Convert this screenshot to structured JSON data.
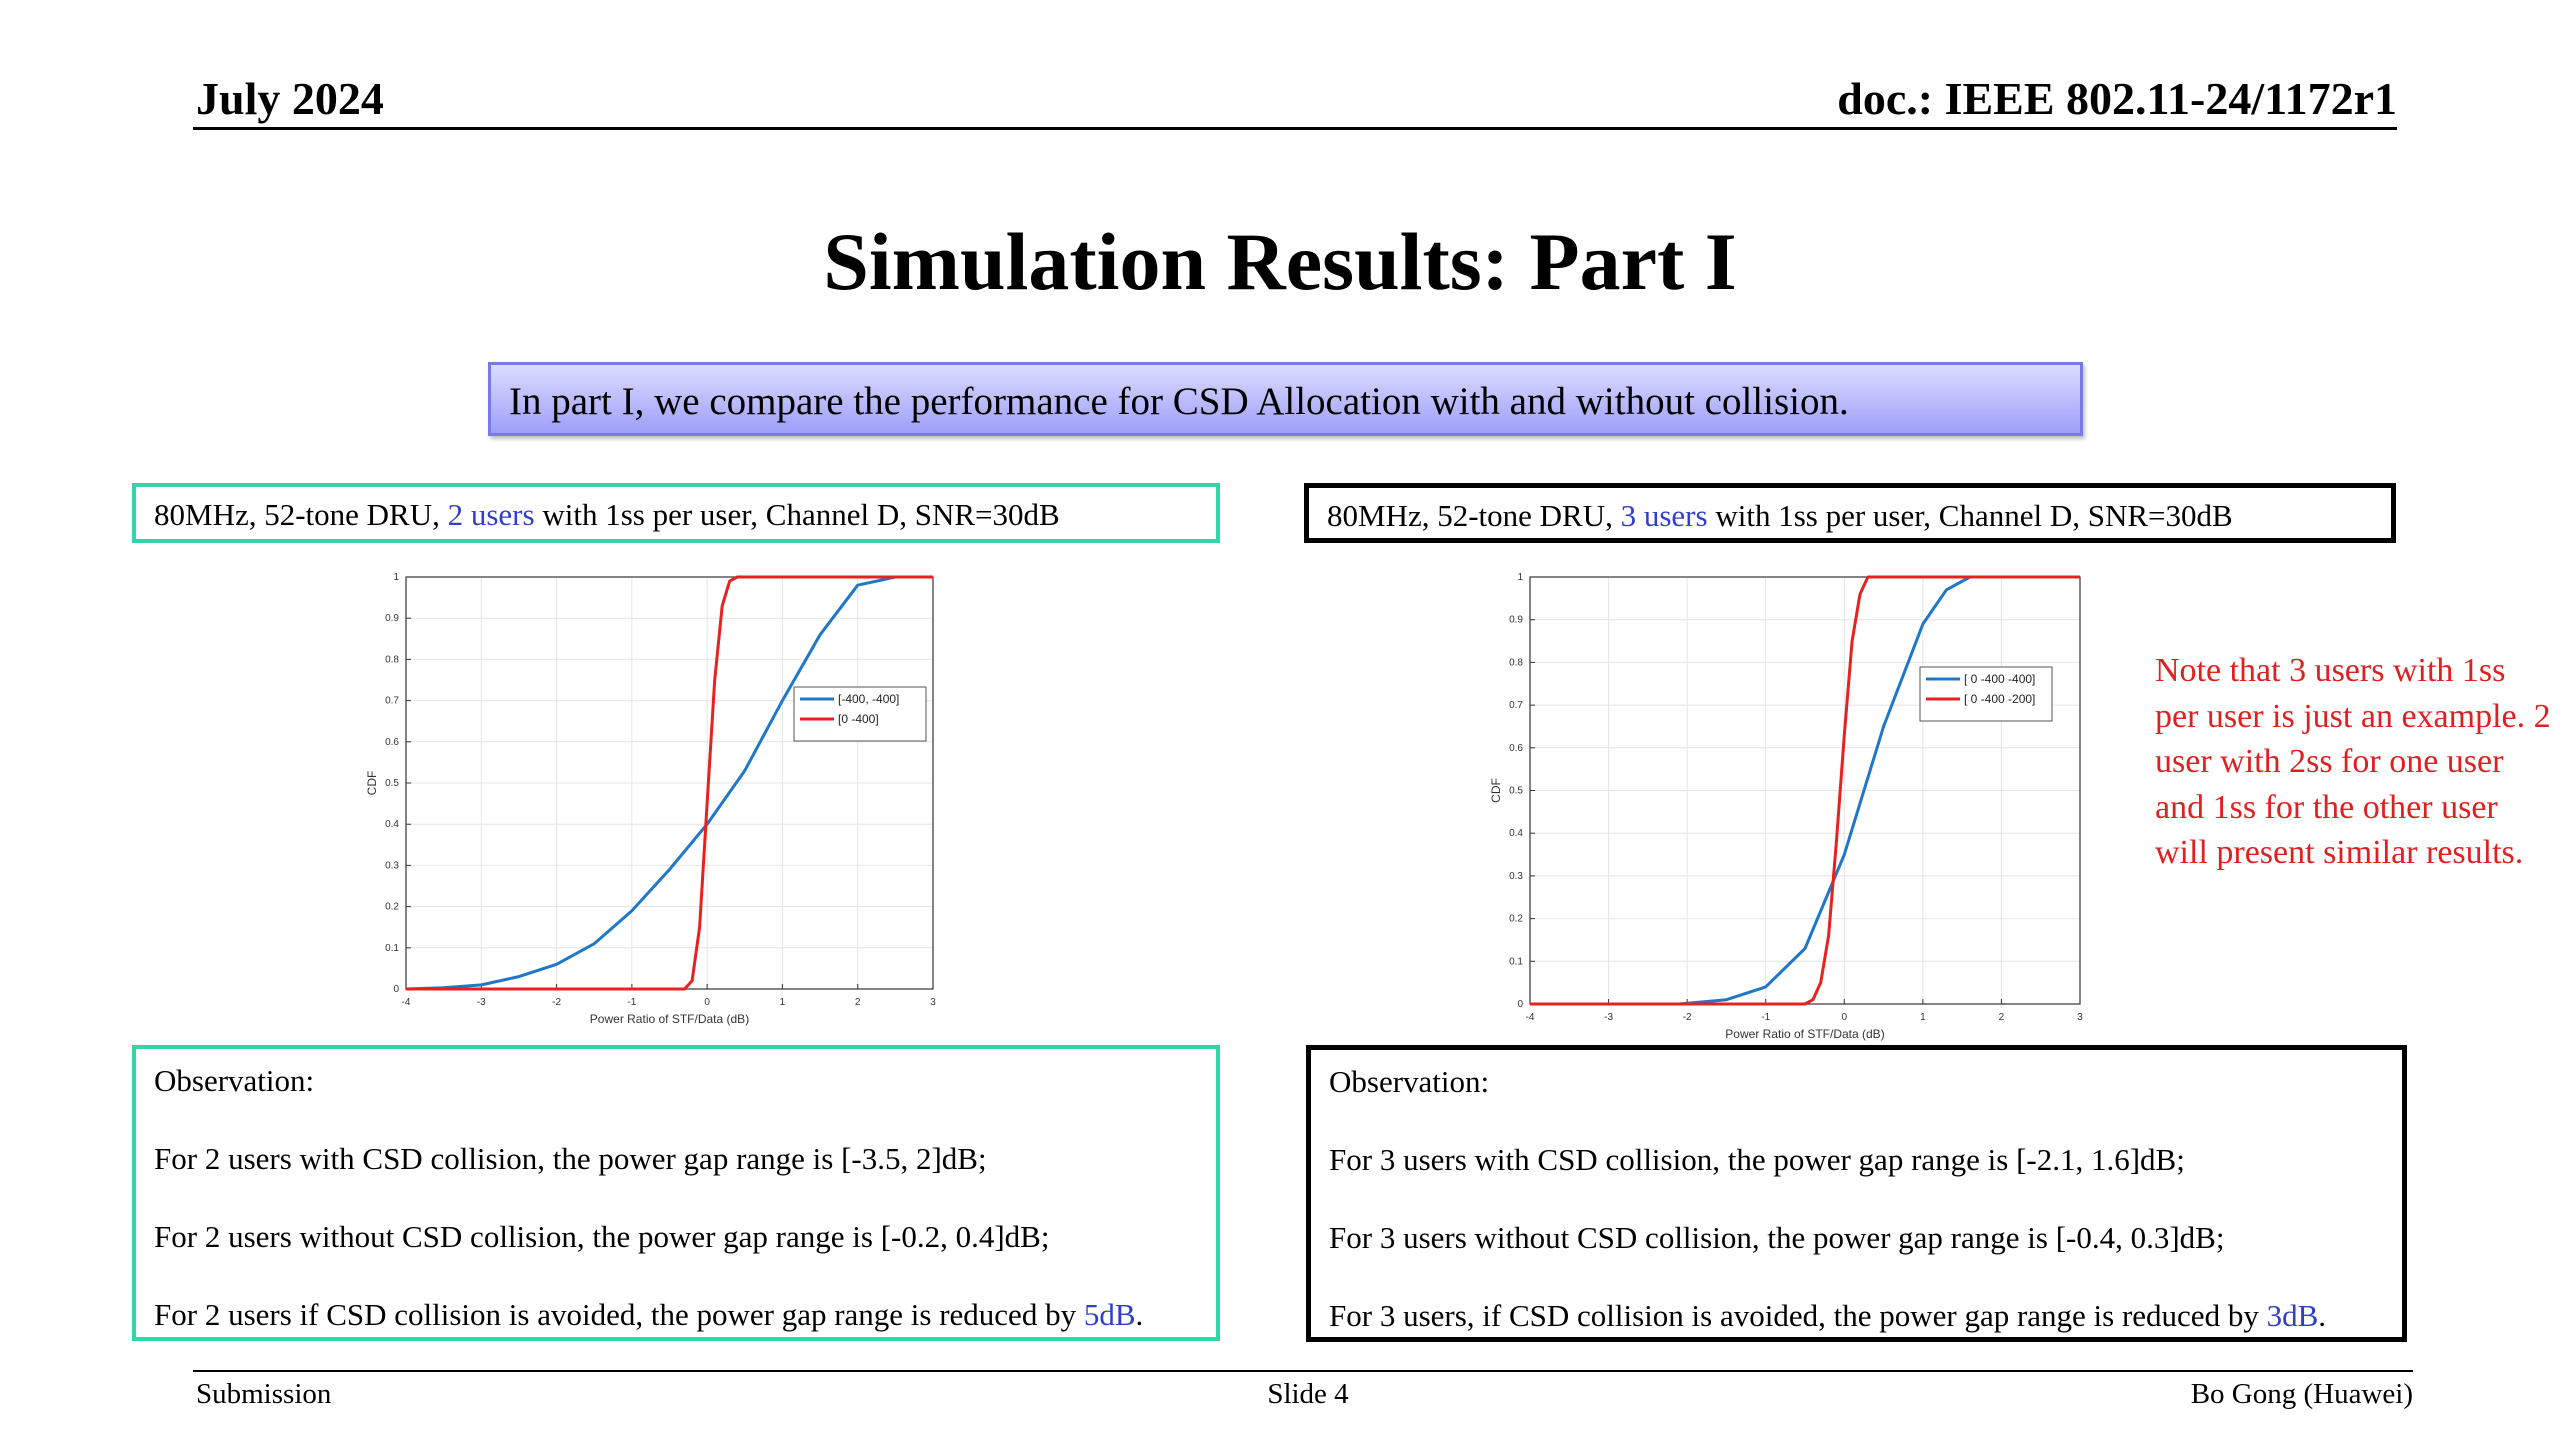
{
  "header": {
    "date": "July 2024",
    "doc": "doc.: IEEE 802.11-24/1172r1"
  },
  "title": "Simulation Results: Part I",
  "intro": "In part I, we compare the performance for CSD Allocation with and without collision.",
  "left": {
    "config_pre": "80MHz, 52-tone DRU, ",
    "config_users": "2 users",
    "config_post": " with 1ss per user, Channel D, SNR=30dB",
    "obs_title": "Observation:",
    "obs1": "For 2 users with CSD collision, the power gap range is [-3.5, 2]dB;",
    "obs2": "For 2 users without CSD collision, the power gap range is [-0.2, 0.4]dB;",
    "obs3_pre": "For 2 users if CSD collision is avoided, the power gap range is reduced by ",
    "obs3_val": "5dB",
    "obs3_post": "."
  },
  "right": {
    "config_pre": "80MHz, 52-tone DRU, ",
    "config_users": "3 users",
    "config_post": " with 1ss per user, Channel D, SNR=30dB",
    "obs_title": "Observation:",
    "obs1": "For 3 users with CSD collision, the power gap range is [-2.1, 1.6]dB;",
    "obs2": "For 3 users without CSD collision, the power gap range is [-0.4, 0.3]dB;",
    "obs3_pre": "For 3 users, if CSD collision is avoided, the power gap range is reduced by ",
    "obs3_val": "3dB",
    "obs3_post": "."
  },
  "note": "Note that 3 users with 1ss per user is just an example. 2 user with 2ss for one user and 1ss for the other user will present similar results.",
  "footer": {
    "left": "Submission",
    "center": "Slide 4",
    "right": "Bo Gong (Huawei)"
  },
  "colors": {
    "accent_green": "#2fd6a8",
    "series_blue": "#1f77c8",
    "series_red": "#e82020",
    "note_red": "#e02020",
    "highlight_blue": "#2f3fcc"
  },
  "chart_data": [
    {
      "type": "line",
      "xlabel": "Power Ratio of STF/Data (dB)",
      "ylabel": "CDF",
      "xlim": [
        -4,
        3
      ],
      "ylim": [
        0,
        1
      ],
      "xticks": [
        -4,
        -3,
        -2,
        -1,
        0,
        1,
        2,
        3
      ],
      "yticks": [
        0,
        0.1,
        0.2,
        0.3,
        0.4,
        0.5,
        0.6,
        0.7,
        0.8,
        0.9,
        1
      ],
      "grid": true,
      "legend": "center-right",
      "series": [
        {
          "name": "[-400, -400]",
          "color": "#1f77c8",
          "x": [
            -4,
            -3.5,
            -3,
            -2.5,
            -2,
            -1.5,
            -1,
            -0.5,
            0,
            0.5,
            1,
            1.5,
            2,
            2.5,
            3
          ],
          "y": [
            0,
            0.003,
            0.01,
            0.03,
            0.06,
            0.11,
            0.19,
            0.29,
            0.4,
            0.53,
            0.7,
            0.86,
            0.98,
            1.0,
            1.0
          ]
        },
        {
          "name": "[0 -400]",
          "color": "#e82020",
          "x": [
            -4,
            -0.3,
            -0.2,
            -0.1,
            0,
            0.1,
            0.2,
            0.3,
            0.4,
            3
          ],
          "y": [
            0,
            0,
            0.02,
            0.15,
            0.45,
            0.75,
            0.93,
            0.99,
            1.0,
            1.0
          ]
        }
      ]
    },
    {
      "type": "line",
      "xlabel": "Power Ratio of STF/Data (dB)",
      "ylabel": "CDF",
      "xlim": [
        -4,
        3
      ],
      "ylim": [
        0,
        1
      ],
      "xticks": [
        -4,
        -3,
        -2,
        -1,
        0,
        1,
        2,
        3
      ],
      "yticks": [
        0,
        0.1,
        0.2,
        0.3,
        0.4,
        0.5,
        0.6,
        0.7,
        0.8,
        0.9,
        1
      ],
      "grid": true,
      "legend": "top-right",
      "series": [
        {
          "name": "[ 0 -400 -400]",
          "color": "#1f77c8",
          "x": [
            -4,
            -2.1,
            -1.5,
            -1,
            -0.5,
            0,
            0.5,
            1,
            1.3,
            1.6,
            3
          ],
          "y": [
            0,
            0,
            0.01,
            0.04,
            0.13,
            0.35,
            0.65,
            0.89,
            0.97,
            1.0,
            1.0
          ]
        },
        {
          "name": "[ 0 -400 -200]",
          "color": "#e82020",
          "x": [
            -4,
            -0.5,
            -0.4,
            -0.3,
            -0.2,
            -0.1,
            0,
            0.1,
            0.2,
            0.3,
            3
          ],
          "y": [
            0,
            0,
            0.01,
            0.05,
            0.16,
            0.38,
            0.63,
            0.85,
            0.96,
            1.0,
            1.0
          ]
        }
      ]
    }
  ]
}
